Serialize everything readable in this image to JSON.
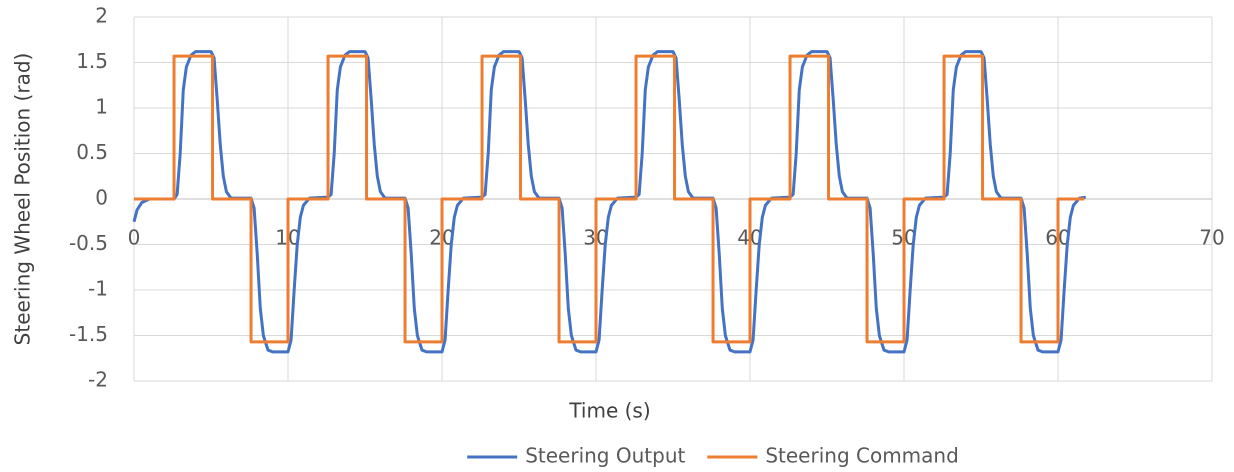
{
  "chart_data": {
    "type": "line",
    "xlabel": "Time (s)",
    "ylabel": "Steering Wheel Position (rad)",
    "xlim": [
      0,
      70
    ],
    "xticks": [
      0,
      10,
      20,
      30,
      40,
      50,
      60,
      70
    ],
    "ylim": [
      -2,
      2
    ],
    "yticks": [
      -2,
      -1.5,
      -1,
      -0.5,
      0,
      0.5,
      1,
      1.5,
      2
    ],
    "grid": true,
    "legend": "bottom",
    "series": [
      {
        "name": "Steering Output",
        "color": "#4472c4",
        "x": [
          0,
          0.2,
          0.5,
          1,
          2.6,
          2.8,
          3,
          3.2,
          3.4,
          3.7,
          4,
          5,
          5.2,
          5.4,
          5.6,
          5.8,
          6,
          6.3,
          7.6,
          7.8,
          8,
          8.2,
          8.4,
          8.7,
          9,
          10,
          10.2,
          10.4,
          10.6,
          10.8,
          11,
          11.4,
          12.6,
          12.8,
          13,
          13.2,
          13.4,
          13.7,
          14,
          15,
          15.2,
          15.4,
          15.6,
          15.8,
          16,
          16.3,
          17.6,
          17.8,
          18,
          18.2,
          18.4,
          18.7,
          19,
          20,
          20.2,
          20.4,
          20.6,
          20.8,
          21,
          21.4,
          22.6,
          22.8,
          23,
          23.2,
          23.4,
          23.7,
          24,
          25,
          25.2,
          25.4,
          25.6,
          25.8,
          26,
          26.3,
          27.6,
          27.8,
          28,
          28.2,
          28.4,
          28.7,
          29,
          30,
          30.2,
          30.4,
          30.6,
          30.8,
          31,
          31.4,
          32.6,
          32.8,
          33,
          33.2,
          33.4,
          33.7,
          34,
          35,
          35.2,
          35.4,
          35.6,
          35.8,
          36,
          36.3,
          37.6,
          37.8,
          38,
          38.2,
          38.4,
          38.7,
          39,
          40,
          40.2,
          40.4,
          40.6,
          40.8,
          41,
          41.4,
          42.6,
          42.8,
          43,
          43.2,
          43.4,
          43.7,
          44,
          45,
          45.2,
          45.4,
          45.6,
          45.8,
          46,
          46.3,
          47.6,
          47.8,
          48,
          48.2,
          48.4,
          48.7,
          49,
          50,
          50.2,
          50.4,
          50.6,
          50.8,
          51,
          51.4,
          52.6,
          52.8,
          53,
          53.2,
          53.4,
          53.7,
          54,
          55,
          55.2,
          55.4,
          55.6,
          55.8,
          56,
          56.3,
          57.6,
          57.8,
          58,
          58.2,
          58.4,
          58.7,
          59,
          60,
          60.2,
          60.4,
          60.6,
          60.8,
          61,
          61.4,
          61.8
        ],
        "values": [
          -0.25,
          -0.12,
          -0.04,
          0,
          0,
          0.05,
          0.5,
          1.2,
          1.45,
          1.58,
          1.62,
          1.62,
          1.55,
          1.1,
          0.6,
          0.25,
          0.08,
          0.01,
          0.01,
          -0.1,
          -0.6,
          -1.2,
          -1.5,
          -1.66,
          -1.68,
          -1.68,
          -1.55,
          -1,
          -0.5,
          -0.2,
          -0.07,
          0.01,
          0.02,
          0.05,
          0.5,
          1.2,
          1.45,
          1.58,
          1.62,
          1.62,
          1.55,
          1.1,
          0.6,
          0.25,
          0.08,
          0.01,
          0.01,
          -0.1,
          -0.6,
          -1.2,
          -1.5,
          -1.66,
          -1.68,
          -1.68,
          -1.55,
          -1,
          -0.5,
          -0.2,
          -0.07,
          0.01,
          0.02,
          0.05,
          0.5,
          1.2,
          1.45,
          1.58,
          1.62,
          1.62,
          1.55,
          1.1,
          0.6,
          0.25,
          0.08,
          0.01,
          0.01,
          -0.1,
          -0.6,
          -1.2,
          -1.5,
          -1.66,
          -1.68,
          -1.68,
          -1.55,
          -1,
          -0.5,
          -0.2,
          -0.07,
          0.01,
          0.02,
          0.05,
          0.5,
          1.2,
          1.45,
          1.58,
          1.62,
          1.62,
          1.55,
          1.1,
          0.6,
          0.25,
          0.08,
          0.01,
          0.01,
          -0.1,
          -0.6,
          -1.2,
          -1.5,
          -1.66,
          -1.68,
          -1.68,
          -1.55,
          -1,
          -0.5,
          -0.2,
          -0.07,
          0.01,
          0.02,
          0.05,
          0.5,
          1.2,
          1.45,
          1.58,
          1.62,
          1.62,
          1.55,
          1.1,
          0.6,
          0.25,
          0.08,
          0.01,
          0.01,
          -0.1,
          -0.6,
          -1.2,
          -1.5,
          -1.66,
          -1.68,
          -1.68,
          -1.55,
          -1,
          -0.5,
          -0.2,
          -0.07,
          0.01,
          0.02,
          0.05,
          0.5,
          1.2,
          1.45,
          1.58,
          1.62,
          1.62,
          1.55,
          1.1,
          0.6,
          0.25,
          0.08,
          0.01,
          0.01,
          -0.1,
          -0.6,
          -1.2,
          -1.5,
          -1.66,
          -1.68,
          -1.68,
          -1.55,
          -1,
          -0.5,
          -0.2,
          -0.07,
          0.01,
          0.02
        ]
      },
      {
        "name": "Steering Command",
        "color": "#ed7d31",
        "x": [
          0,
          2.6,
          2.6,
          5.1,
          5.1,
          7.6,
          7.6,
          10,
          10,
          12.6,
          12.6,
          15.1,
          15.1,
          17.6,
          17.6,
          20,
          20,
          22.6,
          22.6,
          25.1,
          25.1,
          27.6,
          27.6,
          30,
          30,
          32.6,
          32.6,
          35.1,
          35.1,
          37.6,
          37.6,
          40,
          40,
          42.6,
          42.6,
          45.1,
          45.1,
          47.6,
          47.6,
          50,
          50,
          52.6,
          52.6,
          55.1,
          55.1,
          57.6,
          57.6,
          60,
          60,
          61.7
        ],
        "values": [
          0,
          0,
          1.57,
          1.57,
          0,
          0,
          -1.57,
          -1.57,
          0,
          0,
          1.57,
          1.57,
          0,
          0,
          -1.57,
          -1.57,
          0,
          0,
          1.57,
          1.57,
          0,
          0,
          -1.57,
          -1.57,
          0,
          0,
          1.57,
          1.57,
          0,
          0,
          -1.57,
          -1.57,
          0,
          0,
          1.57,
          1.57,
          0,
          0,
          -1.57,
          -1.57,
          0,
          0,
          1.57,
          1.57,
          0,
          0,
          -1.57,
          -1.57,
          0,
          0
        ]
      }
    ]
  }
}
